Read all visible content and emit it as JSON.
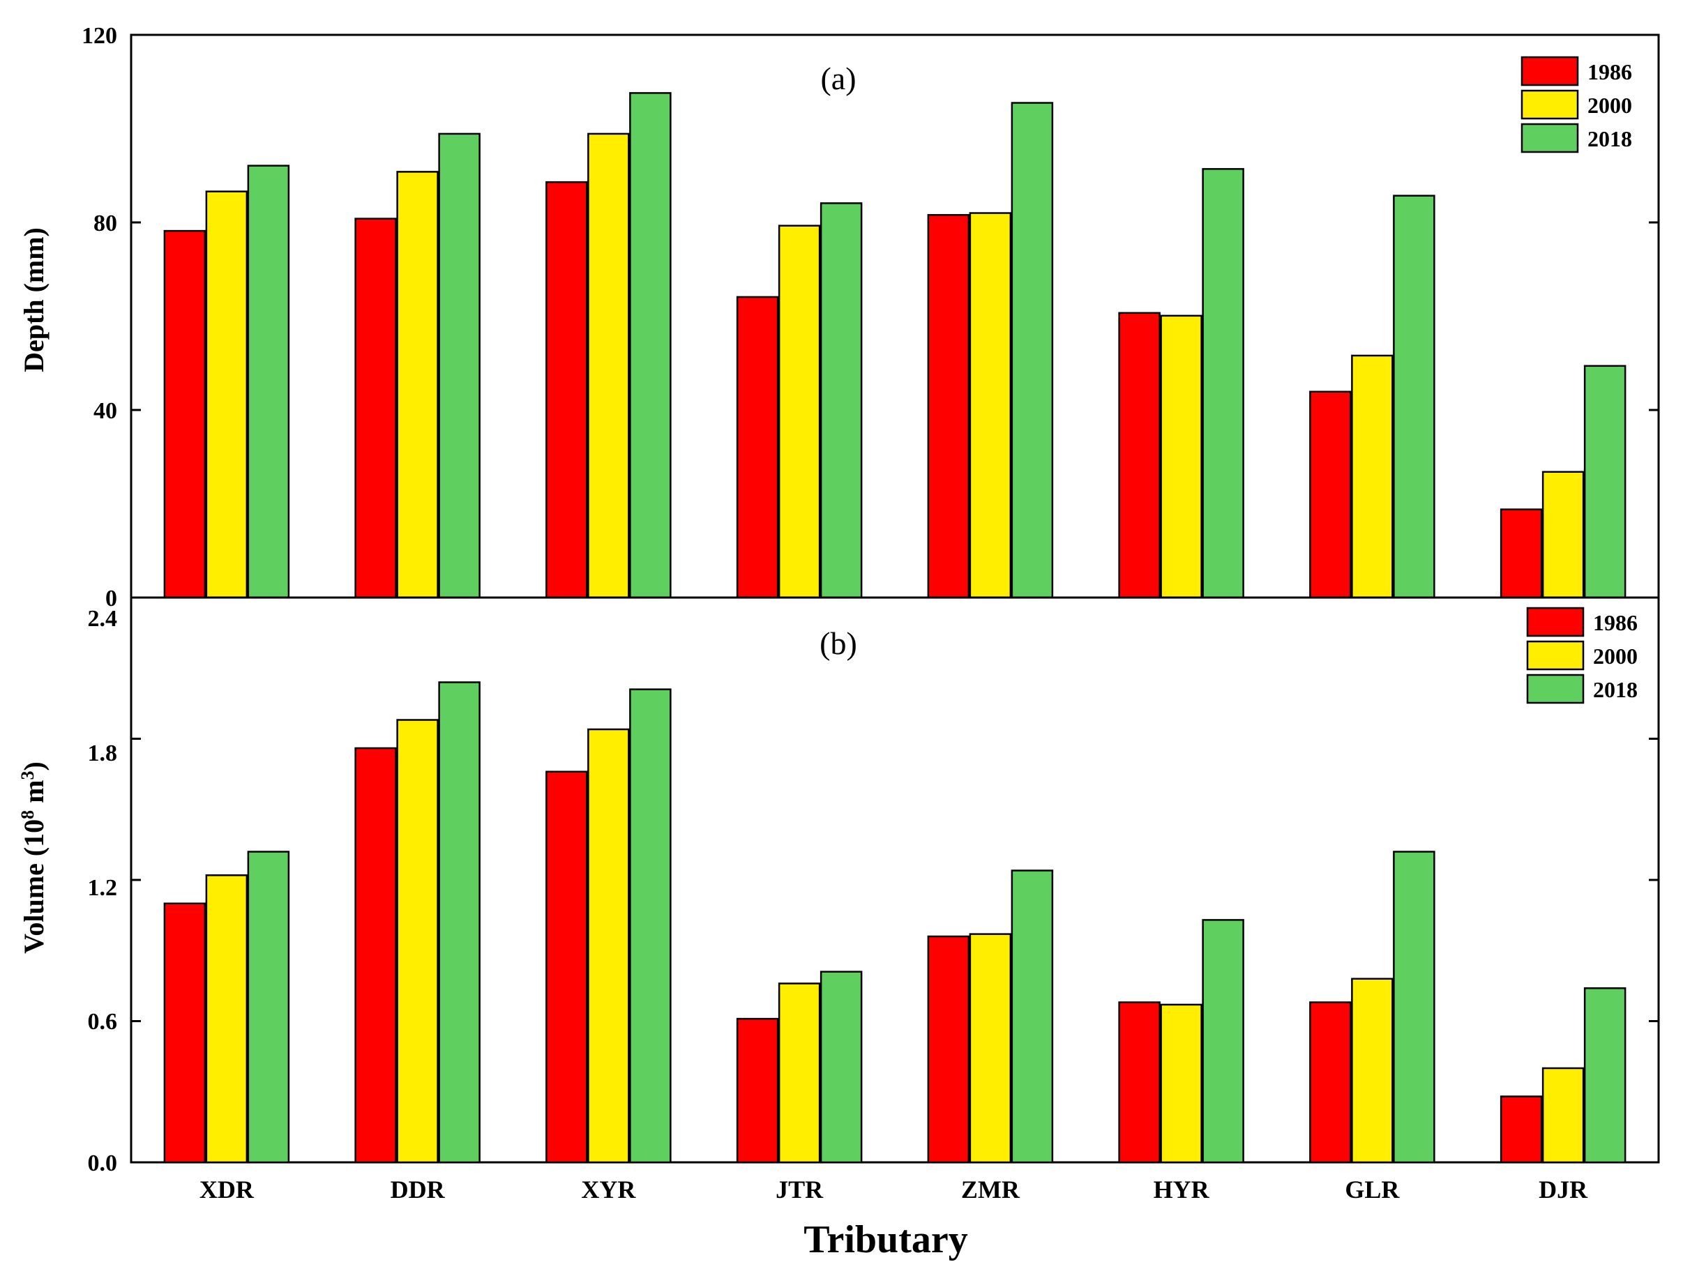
{
  "chart_data": [
    {
      "type": "bar",
      "panel_label": "(a)",
      "title": "",
      "xlabel": "",
      "ylabel": "Depth (mm)",
      "ylim": [
        0,
        120
      ],
      "yticks": [
        "0",
        "40",
        "80",
        "120"
      ],
      "categories": [
        "XDR",
        "DDR",
        "XYR",
        "JTR",
        "ZMR",
        "HYR",
        "GLR",
        "DJR"
      ],
      "legend_position": "top-right",
      "series": [
        {
          "name": "1986",
          "color": "#ff0000",
          "values": [
            78.2,
            80.8,
            88.6,
            64.1,
            81.6,
            60.7,
            43.9,
            18.8
          ]
        },
        {
          "name": "2000",
          "color": "#ffee00",
          "values": [
            86.6,
            90.8,
            98.9,
            79.3,
            82.0,
            60.1,
            51.6,
            26.8
          ]
        },
        {
          "name": "2018",
          "color": "#5fd060",
          "values": [
            92.1,
            98.9,
            107.6,
            84.1,
            105.5,
            91.4,
            85.7,
            49.4
          ]
        }
      ]
    },
    {
      "type": "bar",
      "panel_label": "(b)",
      "title": "",
      "xlabel": "Tributary",
      "ylabel_parts": [
        "Volume (10",
        "8",
        " m",
        "3",
        ")"
      ],
      "ylim": [
        0,
        2.4
      ],
      "yticks": [
        "0.0",
        "0.6",
        "1.2",
        "1.8",
        "2.4"
      ],
      "categories": [
        "XDR",
        "DDR",
        "XYR",
        "JTR",
        "ZMR",
        "HYR",
        "GLR",
        "DJR"
      ],
      "legend_position": "top-right",
      "series": [
        {
          "name": "1986",
          "color": "#ff0000",
          "values": [
            1.1,
            1.76,
            1.66,
            0.61,
            0.96,
            0.68,
            0.68,
            0.28
          ]
        },
        {
          "name": "2000",
          "color": "#ffee00",
          "values": [
            1.22,
            1.88,
            1.84,
            0.76,
            0.97,
            0.67,
            0.78,
            0.4
          ]
        },
        {
          "name": "2018",
          "color": "#5fd060",
          "values": [
            1.32,
            2.04,
            2.01,
            0.81,
            1.24,
            1.03,
            1.32,
            0.74
          ]
        }
      ]
    }
  ]
}
